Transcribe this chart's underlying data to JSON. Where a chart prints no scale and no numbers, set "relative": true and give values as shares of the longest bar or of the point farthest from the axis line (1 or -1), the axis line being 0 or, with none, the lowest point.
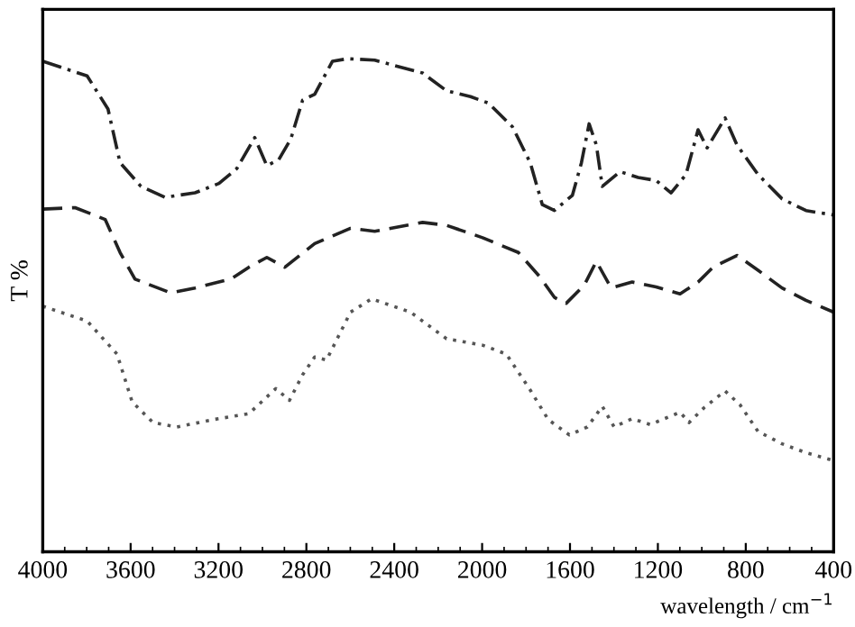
{
  "chart_data": {
    "type": "line",
    "relative": true,
    "xlabel": "wavelength / cm$^{−1}$",
    "ylabel": "T %",
    "xlim": [
      4000,
      400
    ],
    "xticks": [
      4000,
      3600,
      3200,
      2800,
      2400,
      2000,
      1600,
      1200,
      800,
      400
    ],
    "grid": false,
    "legend": false,
    "marker": "none",
    "series": [
      {
        "color": "#222222",
        "line_style": "dashdot",
        "x": [
          4000,
          3798,
          3703,
          3648,
          3553,
          3444,
          3307,
          3198,
          3117,
          3035,
          2980,
          2926,
          2871,
          2817,
          2762,
          2681,
          2612,
          2489,
          2271,
          2162,
          2053,
          1971,
          1862,
          1781,
          1726,
          1671,
          1589,
          1548,
          1513,
          1480,
          1453,
          1372,
          1290,
          1208,
          1140,
          1072,
          1017,
          976,
          894,
          840,
          744,
          635,
          526,
          400
        ],
        "values": [
          0.995,
          0.965,
          0.898,
          0.789,
          0.741,
          0.719,
          0.728,
          0.747,
          0.777,
          0.84,
          0.783,
          0.795,
          0.837,
          0.916,
          0.928,
          0.995,
          1.0,
          0.997,
          0.971,
          0.935,
          0.923,
          0.91,
          0.862,
          0.789,
          0.704,
          0.692,
          0.723,
          0.789,
          0.868,
          0.825,
          0.741,
          0.771,
          0.759,
          0.753,
          0.728,
          0.765,
          0.856,
          0.819,
          0.88,
          0.825,
          0.765,
          0.716,
          0.692,
          0.683
        ]
      },
      {
        "color": "#222222",
        "line_style": "dashed",
        "x": [
          4000,
          3853,
          3716,
          3648,
          3580,
          3417,
          3307,
          3144,
          3062,
          2980,
          2898,
          2762,
          2599,
          2489,
          2271,
          2162,
          1998,
          1835,
          1740,
          1671,
          1617,
          1535,
          1480,
          1413,
          1317,
          1208,
          1099,
          1017,
          949,
          840,
          744,
          635,
          526,
          400
        ],
        "values": [
          0.695,
          0.698,
          0.674,
          0.607,
          0.553,
          0.525,
          0.535,
          0.553,
          0.577,
          0.597,
          0.577,
          0.625,
          0.656,
          0.65,
          0.668,
          0.662,
          0.637,
          0.607,
          0.559,
          0.516,
          0.504,
          0.541,
          0.589,
          0.535,
          0.547,
          0.537,
          0.523,
          0.547,
          0.577,
          0.601,
          0.571,
          0.535,
          0.51,
          0.486
        ]
      },
      {
        "color": "#555555",
        "line_style": "dotted",
        "x": [
          4000,
          3798,
          3662,
          3593,
          3498,
          3389,
          3225,
          3062,
          2939,
          2877,
          2817,
          2762,
          2708,
          2599,
          2503,
          2326,
          2162,
          1998,
          1890,
          1781,
          1699,
          1603,
          1521,
          1453,
          1399,
          1317,
          1235,
          1099,
          1058,
          990,
          894,
          826,
          744,
          635,
          526,
          400
        ],
        "values": [
          0.498,
          0.468,
          0.401,
          0.304,
          0.262,
          0.253,
          0.268,
          0.28,
          0.331,
          0.307,
          0.359,
          0.395,
          0.389,
          0.486,
          0.513,
          0.486,
          0.432,
          0.419,
          0.401,
          0.328,
          0.268,
          0.237,
          0.253,
          0.295,
          0.253,
          0.27,
          0.258,
          0.283,
          0.262,
          0.292,
          0.326,
          0.298,
          0.244,
          0.219,
          0.201,
          0.185
        ]
      }
    ]
  }
}
